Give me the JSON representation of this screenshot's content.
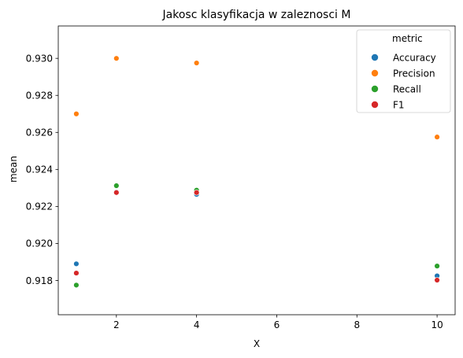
{
  "chart_data": {
    "type": "scatter",
    "title": "Jakosc klasyfikacja w zaleznosci M",
    "xlabel": "X",
    "ylabel": "mean",
    "xlim": [
      0.55,
      10.45
    ],
    "ylim": [
      0.91615,
      0.93175
    ],
    "xticks": [
      2,
      4,
      6,
      8,
      10
    ],
    "yticks": [
      0.918,
      0.92,
      0.922,
      0.924,
      0.926,
      0.928,
      0.93
    ],
    "ytick_labels": [
      "0.918",
      "0.920",
      "0.922",
      "0.924",
      "0.926",
      "0.928",
      "0.930"
    ],
    "grid": false,
    "legend": {
      "title": "metric",
      "placement": "upper right"
    },
    "series": [
      {
        "name": "Accuracy",
        "color": "#1f77b4",
        "x": [
          1,
          2,
          4,
          10
        ],
        "y": [
          0.9189,
          0.92278,
          0.92265,
          0.91825
        ]
      },
      {
        "name": "Precision",
        "color": "#ff7f0e",
        "x": [
          1,
          2,
          4,
          10
        ],
        "y": [
          0.927,
          0.93,
          0.92975,
          0.92575
        ]
      },
      {
        "name": "Recall",
        "color": "#2ca02c",
        "x": [
          1,
          2,
          4,
          10
        ],
        "y": [
          0.91775,
          0.92312,
          0.92288,
          0.91878
        ]
      },
      {
        "name": "F1",
        "color": "#d62728",
        "x": [
          1,
          2,
          4,
          10
        ],
        "y": [
          0.9184,
          0.92275,
          0.92275,
          0.91802
        ]
      }
    ]
  }
}
